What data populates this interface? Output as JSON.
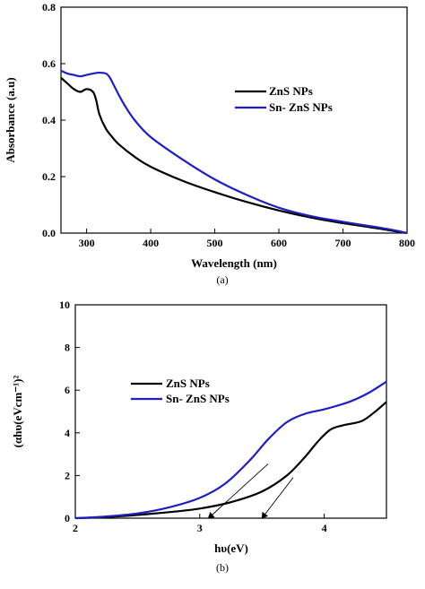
{
  "colors": {
    "zns": "#000000",
    "snzns": "#1f1fbf"
  },
  "chart_data": [
    {
      "type": "line",
      "caption": "(a)",
      "xlabel": "Wavelength (nm)",
      "ylabel": "Absorbance (a.u)",
      "xlim": [
        260,
        800
      ],
      "ylim": [
        0.0,
        0.8
      ],
      "xticks": [
        300,
        400,
        500,
        600,
        700,
        800
      ],
      "xtick_labels": [
        "300",
        "400",
        "500",
        "600",
        "700",
        "800"
      ],
      "yticks": [
        0.0,
        0.2,
        0.4,
        0.6,
        0.8
      ],
      "ytick_labels": [
        "0.0",
        "0.2",
        "0.4",
        "0.6",
        "0.8"
      ],
      "legend_placement": "right",
      "series": [
        {
          "name": "ZnS NPs",
          "color": "#000000",
          "x": [
            260,
            270,
            280,
            290,
            300,
            310,
            315,
            320,
            330,
            340,
            350,
            375,
            400,
            450,
            500,
            550,
            600,
            650,
            700,
            750,
            780,
            800
          ],
          "y": [
            0.55,
            0.53,
            0.51,
            0.5,
            0.51,
            0.5,
            0.47,
            0.42,
            0.37,
            0.34,
            0.315,
            0.27,
            0.235,
            0.185,
            0.145,
            0.11,
            0.08,
            0.055,
            0.035,
            0.018,
            0.007,
            0.0
          ]
        },
        {
          "name": "Sn- ZnS NPs",
          "color": "#1f1fbf",
          "x": [
            260,
            270,
            280,
            290,
            300,
            310,
            320,
            330,
            335,
            340,
            350,
            360,
            375,
            400,
            450,
            500,
            550,
            600,
            650,
            700,
            750,
            780,
            800
          ],
          "y": [
            0.575,
            0.565,
            0.56,
            0.555,
            0.56,
            0.565,
            0.568,
            0.565,
            0.555,
            0.535,
            0.49,
            0.45,
            0.4,
            0.34,
            0.26,
            0.19,
            0.135,
            0.09,
            0.06,
            0.04,
            0.022,
            0.01,
            0.0
          ]
        }
      ]
    },
    {
      "type": "line",
      "caption": "(b)",
      "xlabel": "hυ(eV)",
      "ylabel": "(αhυ(eVcm⁻¹)²",
      "xlim": [
        2.0,
        4.5
      ],
      "ylim": [
        0,
        10
      ],
      "xticks": [
        2,
        3,
        4
      ],
      "xtick_labels": [
        "2",
        "3",
        "4"
      ],
      "yticks": [
        0,
        2,
        4,
        6,
        8,
        10
      ],
      "ytick_labels": [
        "0",
        "2",
        "4",
        "6",
        "8",
        "10"
      ],
      "legend_placement": "center",
      "series": [
        {
          "name": "ZnS NPs",
          "color": "#000000",
          "x": [
            2.0,
            2.25,
            2.5,
            2.75,
            3.0,
            3.25,
            3.5,
            3.7,
            3.85,
            3.95,
            4.05,
            4.15,
            4.3,
            4.4,
            4.5
          ],
          "y": [
            0.0,
            0.05,
            0.15,
            0.28,
            0.45,
            0.75,
            1.25,
            2.0,
            2.9,
            3.6,
            4.15,
            4.35,
            4.55,
            4.95,
            5.45
          ]
        },
        {
          "name": "Sn- ZnS NPs",
          "color": "#1f1fbf",
          "x": [
            2.0,
            2.25,
            2.5,
            2.75,
            3.0,
            3.2,
            3.4,
            3.55,
            3.7,
            3.85,
            4.0,
            4.2,
            4.35,
            4.5
          ],
          "y": [
            0.0,
            0.08,
            0.22,
            0.5,
            0.95,
            1.6,
            2.7,
            3.7,
            4.5,
            4.9,
            5.1,
            5.45,
            5.85,
            6.4
          ]
        }
      ],
      "tangent_lines": [
        {
          "x": [
            3.07,
            3.55
          ],
          "y": [
            0.0,
            2.55
          ]
        },
        {
          "x": [
            3.5,
            3.75
          ],
          "y": [
            0.0,
            1.9
          ]
        }
      ]
    }
  ]
}
